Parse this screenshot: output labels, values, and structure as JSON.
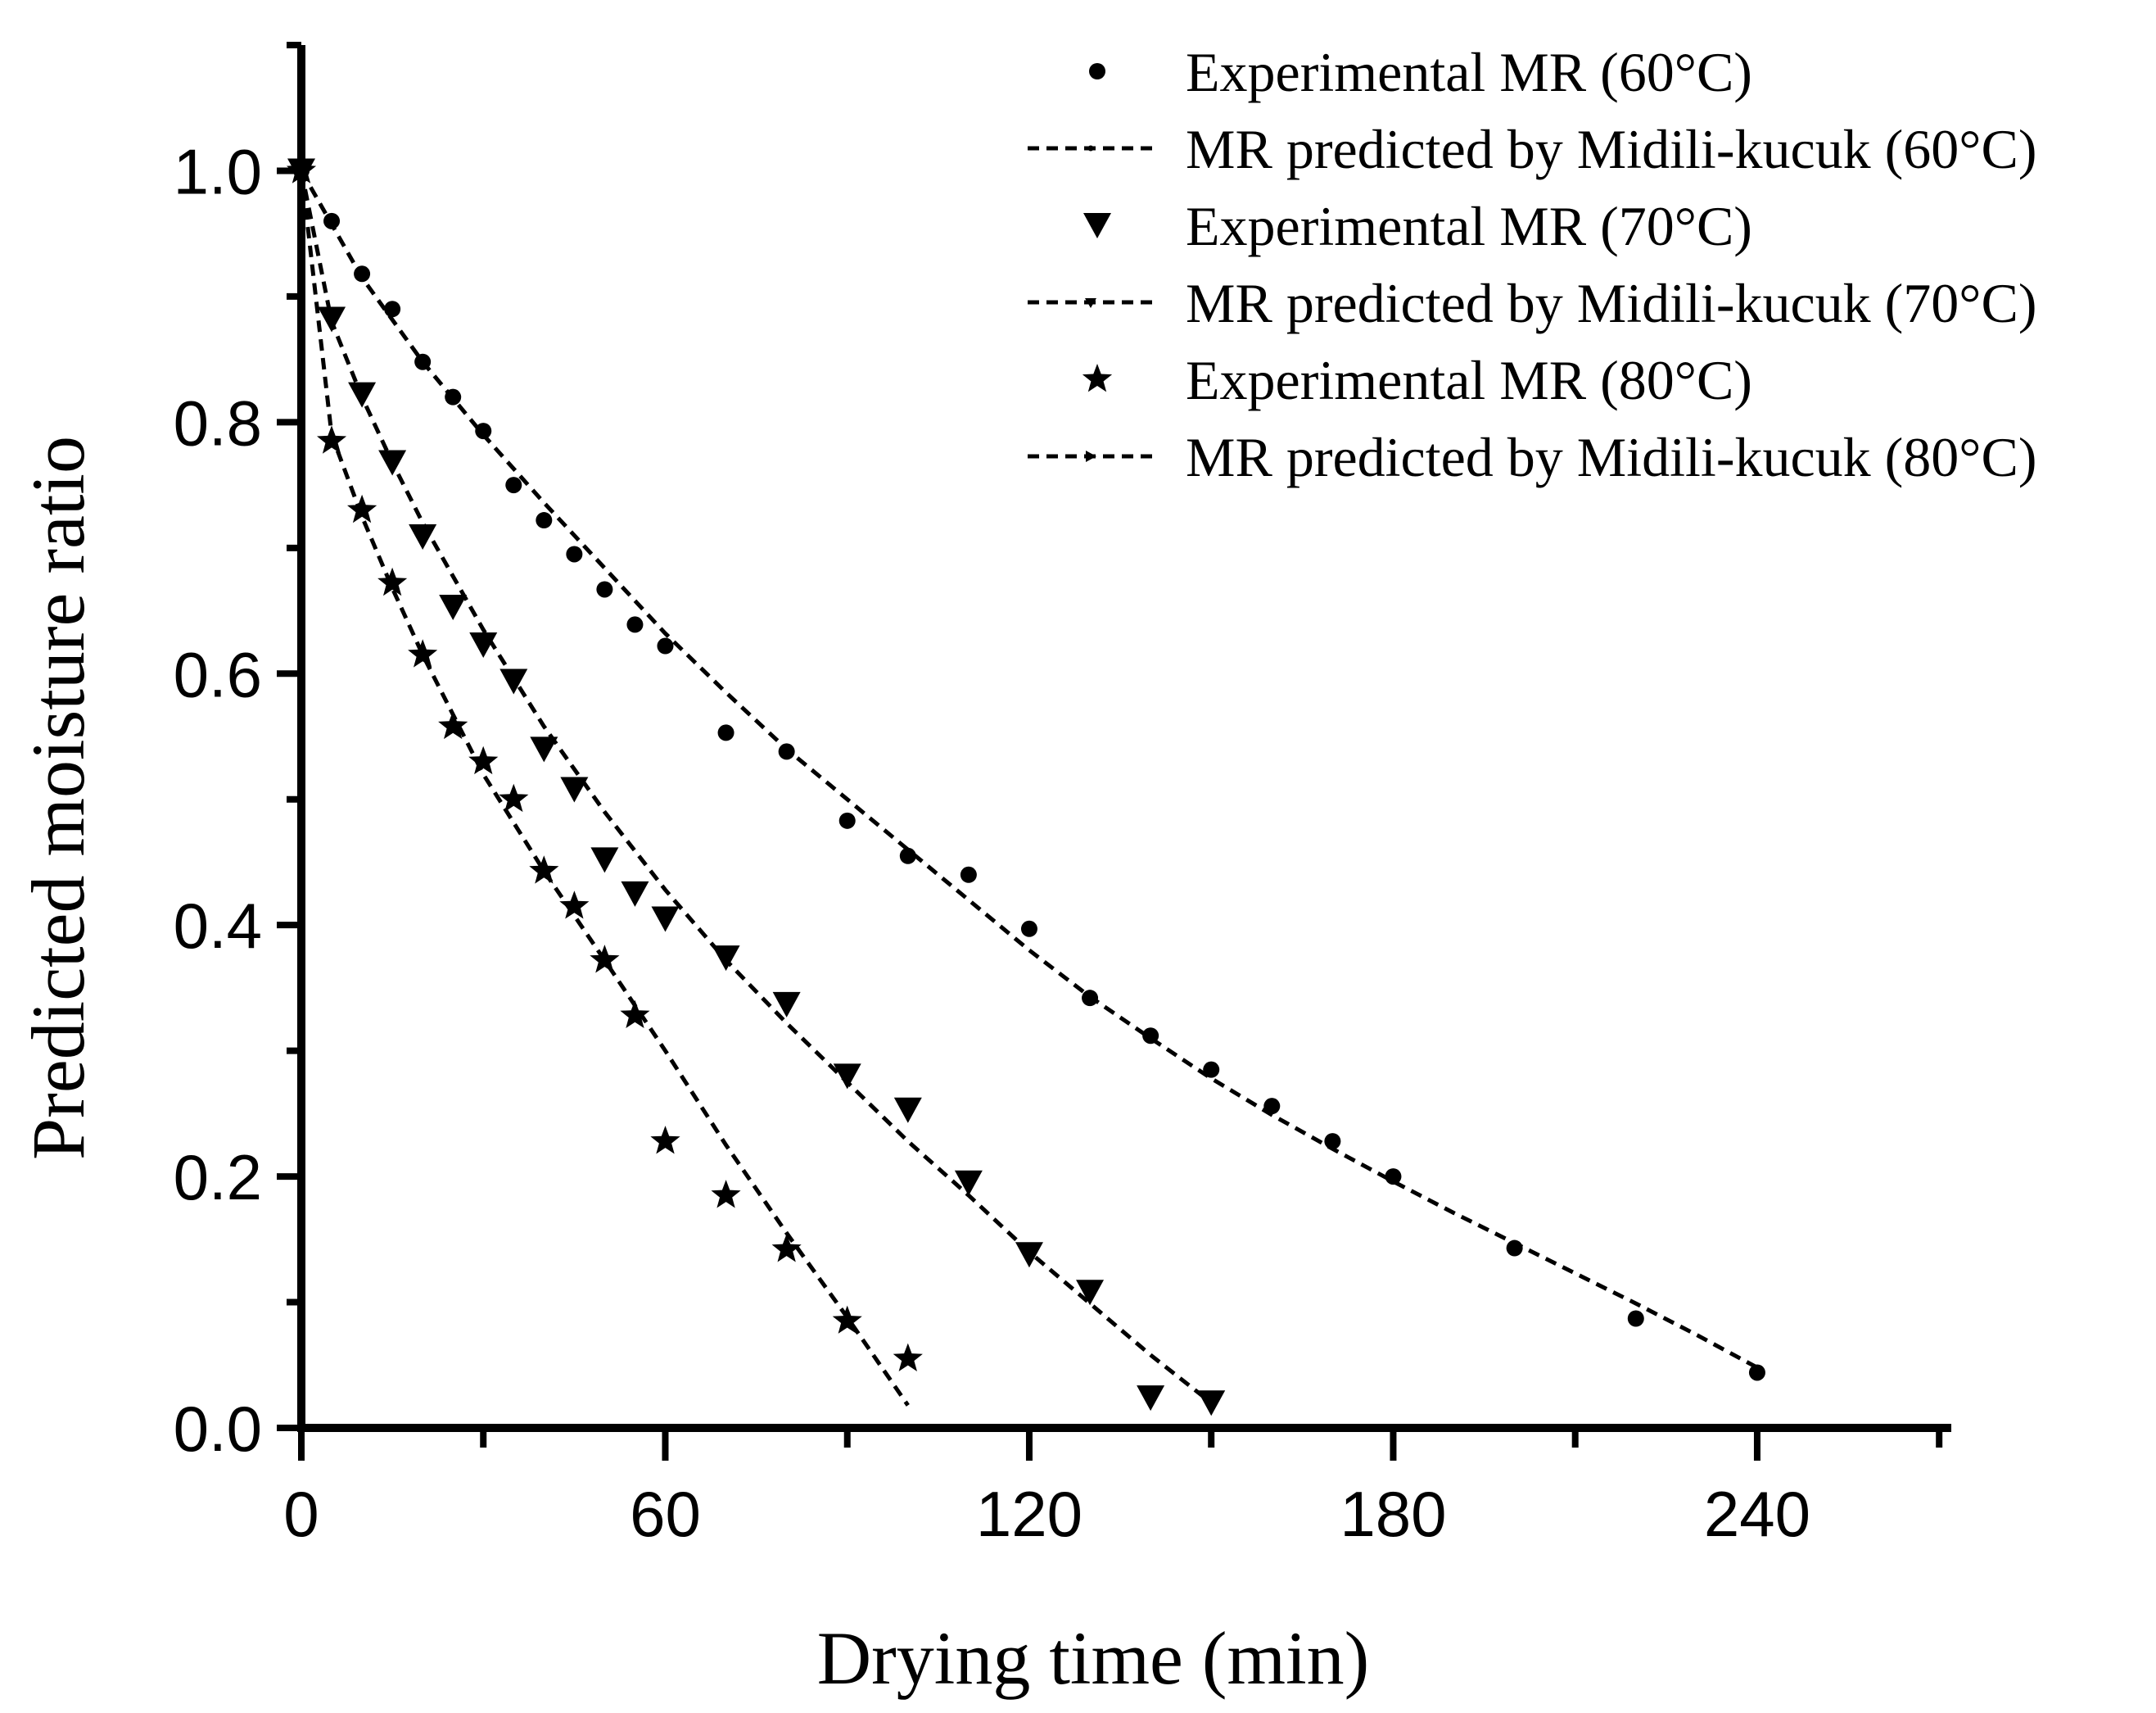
{
  "chart_data": {
    "type": "scatter",
    "title": "",
    "xlabel": "Drying time (min)",
    "ylabel": "Predicted moisture ratio",
    "xlim": [
      0,
      272
    ],
    "ylim": [
      0,
      1.1
    ],
    "x_ticks": [
      0,
      60,
      120,
      180,
      240
    ],
    "x_tick_labels": [
      "0",
      "60",
      "120",
      "180",
      "240"
    ],
    "y_ticks": [
      0.0,
      0.2,
      0.4,
      0.6,
      0.8,
      1.0
    ],
    "y_tick_labels": [
      "0.0",
      "0.2",
      "0.4",
      "0.6",
      "0.8",
      "1.0"
    ],
    "legend_position": "top-right",
    "series": [
      {
        "name": "Experimental MR (60°C)",
        "kind": "points",
        "marker": "circle",
        "x": [
          0,
          5,
          10,
          15,
          20,
          25,
          30,
          35,
          40,
          45,
          50,
          55,
          60,
          70,
          80,
          90,
          100,
          110,
          120,
          130,
          140,
          150,
          160,
          170,
          180,
          200,
          220,
          240
        ],
        "y": [
          1.0,
          0.96,
          0.918,
          0.89,
          0.848,
          0.82,
          0.793,
          0.75,
          0.722,
          0.695,
          0.667,
          0.639,
          0.622,
          0.553,
          0.538,
          0.483,
          0.455,
          0.44,
          0.397,
          0.342,
          0.312,
          0.285,
          0.256,
          0.228,
          0.2,
          0.143,
          0.087,
          0.044
        ]
      },
      {
        "name": "MR predicted by Midili-kucuk (60°C)",
        "kind": "line",
        "marker": "dot",
        "x": [
          0,
          10,
          20,
          30,
          40,
          50,
          60,
          70,
          80,
          90,
          100,
          110,
          120,
          130,
          140,
          150,
          160,
          170,
          180,
          190,
          200,
          210,
          220,
          230,
          240
        ],
        "y": [
          1.0,
          0.915,
          0.848,
          0.79,
          0.736,
          0.684,
          0.632,
          0.585,
          0.54,
          0.5,
          0.46,
          0.42,
          0.38,
          0.343,
          0.31,
          0.278,
          0.249,
          0.222,
          0.196,
          0.171,
          0.147,
          0.123,
          0.099,
          0.074,
          0.048
        ]
      },
      {
        "name": "Experimental MR (70°C)",
        "kind": "points",
        "marker": "triangle-down",
        "x": [
          0,
          5,
          10,
          15,
          20,
          25,
          30,
          35,
          40,
          45,
          50,
          55,
          60,
          70,
          80,
          90,
          100,
          110,
          120,
          130,
          140,
          150
        ],
        "y": [
          1.0,
          0.882,
          0.822,
          0.768,
          0.709,
          0.653,
          0.623,
          0.594,
          0.54,
          0.508,
          0.452,
          0.425,
          0.405,
          0.374,
          0.337,
          0.28,
          0.253,
          0.195,
          0.138,
          0.108,
          0.024,
          0.02
        ]
      },
      {
        "name": "MR predicted by Midili-kucuk (70°C)",
        "kind": "line",
        "marker": "triangle-down-small",
        "x": [
          0,
          5,
          10,
          15,
          20,
          30,
          40,
          50,
          60,
          70,
          80,
          90,
          100,
          110,
          120,
          130,
          140,
          150
        ],
        "y": [
          1.0,
          0.88,
          0.82,
          0.768,
          0.72,
          0.635,
          0.558,
          0.49,
          0.428,
          0.372,
          0.322,
          0.275,
          0.228,
          0.185,
          0.14,
          0.099,
          0.058,
          0.02
        ]
      },
      {
        "name": "Experimental MR (80°C)",
        "kind": "points",
        "marker": "star",
        "x": [
          0,
          5,
          10,
          15,
          20,
          25,
          30,
          35,
          40,
          45,
          50,
          55,
          60,
          70,
          80,
          90,
          100
        ],
        "y": [
          1.0,
          0.785,
          0.73,
          0.672,
          0.615,
          0.558,
          0.53,
          0.5,
          0.443,
          0.415,
          0.372,
          0.328,
          0.228,
          0.185,
          0.142,
          0.085,
          0.055
        ]
      },
      {
        "name": "MR predicted by Midili-kucuk (80°C)",
        "kind": "line",
        "marker": "triangle-right-small",
        "x": [
          0,
          5,
          10,
          15,
          20,
          30,
          40,
          50,
          60,
          70,
          80,
          90,
          100
        ],
        "y": [
          1.0,
          0.79,
          0.725,
          0.668,
          0.615,
          0.52,
          0.443,
          0.372,
          0.3,
          0.225,
          0.155,
          0.088,
          0.018
        ]
      }
    ]
  }
}
